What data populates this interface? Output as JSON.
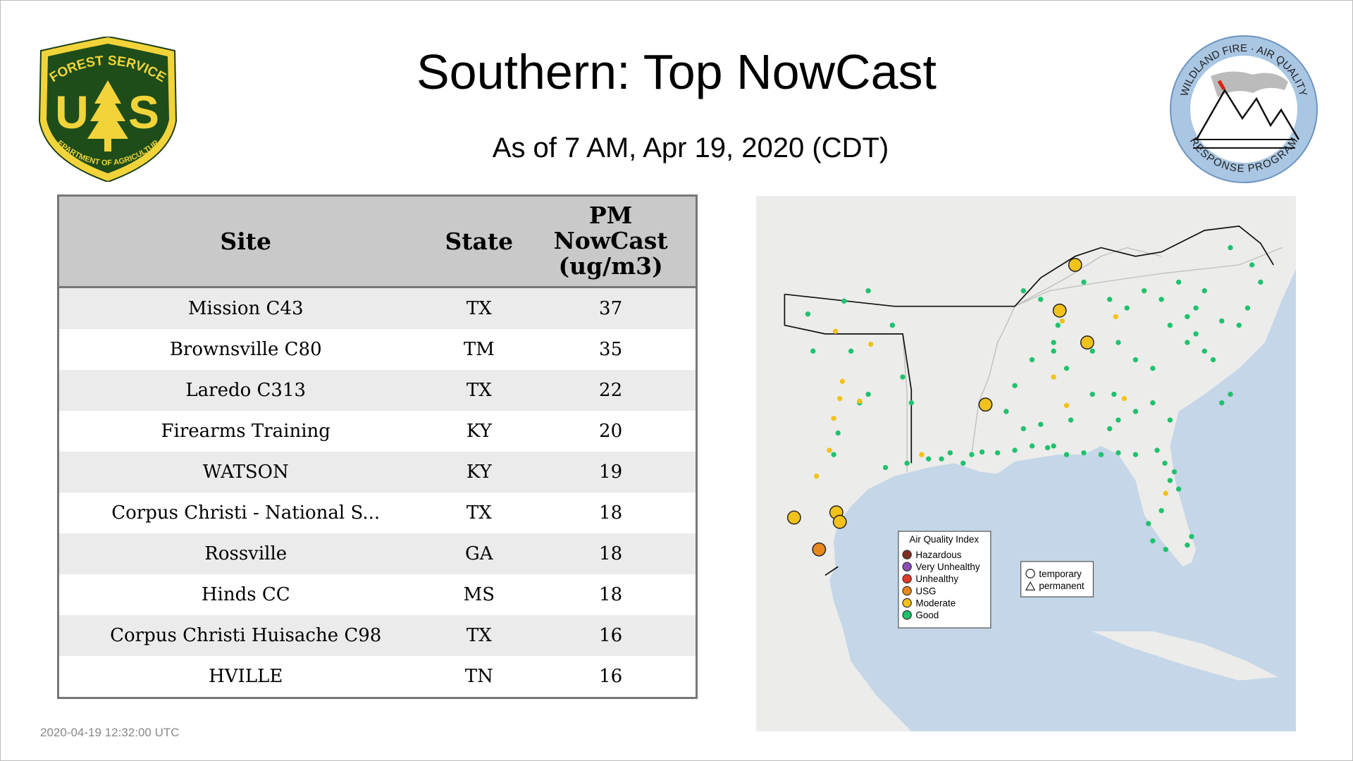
{
  "header": {
    "title": "Southern: Top NowCast",
    "subtitle": "As of  7 AM, Apr 19, 2020 (CDT)"
  },
  "logos": {
    "forest_service": {
      "top": "FOREST SERVICE",
      "letters": [
        "U",
        "S"
      ],
      "bottom": "DEPARTMENT OF AGRICULTURE"
    },
    "wfaqrp": {
      "top": "WILDLAND FIRE · AIR QUALITY",
      "bottom": "RESPONSE PROGRAM"
    }
  },
  "table": {
    "columns": [
      "Site",
      "State",
      "PM NowCast (ug/m3)"
    ],
    "rows": [
      [
        "Mission C43",
        "TX",
        37
      ],
      [
        "Brownsville C80",
        "TM",
        35
      ],
      [
        "Laredo C313",
        "TX",
        22
      ],
      [
        "Firearms Training",
        "KY",
        20
      ],
      [
        "WATSON",
        "KY",
        19
      ],
      [
        "Corpus Christi - National S...",
        "TX",
        18
      ],
      [
        "Rossville",
        "GA",
        18
      ],
      [
        "Hinds CC",
        "MS",
        18
      ],
      [
        "Corpus Christi Huisache C98",
        "TX",
        16
      ],
      [
        "HVILLE",
        "TN",
        16
      ]
    ]
  },
  "map": {
    "legend": {
      "title": "Air Quality Index",
      "items": [
        {
          "label": "Hazardous",
          "color": "#7e2e1f"
        },
        {
          "label": "Very Unhealthy",
          "color": "#8b4fb8"
        },
        {
          "label": "Unhealthy",
          "color": "#e23b2a"
        },
        {
          "label": "USG",
          "color": "#e8881c"
        },
        {
          "label": "Moderate",
          "color": "#f2c21a"
        },
        {
          "label": "Good",
          "color": "#1fc26c"
        }
      ]
    },
    "shape_legend": [
      "temporary",
      "permanent"
    ]
  },
  "timestamp": "2020-04-19 12:32:00 UTC"
}
